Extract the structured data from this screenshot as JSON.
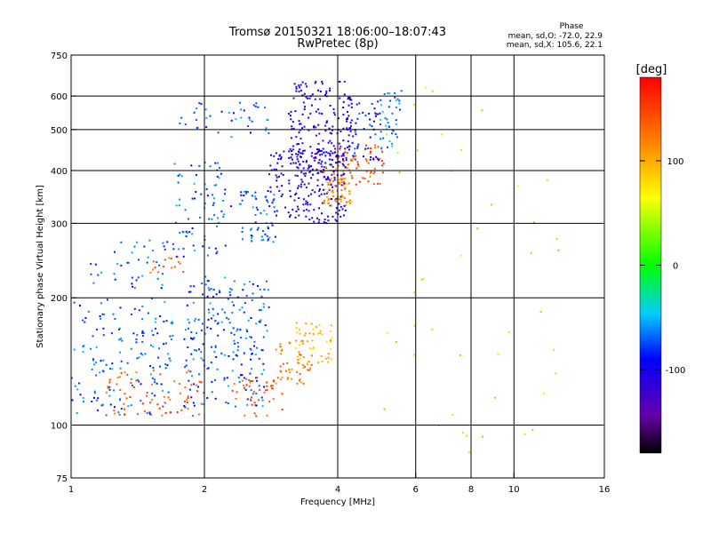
{
  "chart_data": {
    "type": "scatter",
    "title": "Tromsø 20150321 18:06:00–18:07:43",
    "subtitle": "RwPretec (8p)",
    "xlabel": "Frequency [MHz]",
    "ylabel": "Stationary phase Virtual Height [km]",
    "x_scale": "log",
    "y_scale": "log",
    "xlim": [
      1,
      16
    ],
    "ylim": [
      75,
      750
    ],
    "x_ticks": [
      1,
      2,
      4,
      6,
      8,
      10,
      16
    ],
    "x_tick_labels": [
      "1",
      "2",
      "4",
      "6",
      "8",
      "10",
      "16"
    ],
    "y_ticks": [
      75,
      100,
      200,
      300,
      400,
      500,
      600,
      750
    ],
    "y_tick_labels": [
      "75",
      "100",
      "200",
      "300",
      "400",
      "500",
      "600",
      "750"
    ],
    "grid": true,
    "stats": {
      "heading": "Phase",
      "line_o": "mean, sd,O: -72.0, 22.9",
      "line_x": "mean, sd,X: 105.6, 22.1"
    },
    "colorbar": {
      "label": "[deg]",
      "colormap": "rainbow",
      "range": [
        -180,
        180
      ],
      "ticks": [
        100,
        0,
        -100
      ],
      "tick_labels": [
        "100",
        "0",
        "-100"
      ]
    },
    "clusters": [
      {
        "f_range": [
          1.0,
          1.7
        ],
        "h_range": [
          105,
          200
        ],
        "phase": -72,
        "n": 160
      },
      {
        "f_range": [
          1.8,
          2.8
        ],
        "h_range": [
          110,
          225
        ],
        "phase": -72,
        "n": 220
      },
      {
        "f_range": [
          1.2,
          2.0
        ],
        "h_range": [
          105,
          135
        ],
        "phase": 138,
        "n": 70
      },
      {
        "f_range": [
          2.3,
          3.0
        ],
        "h_range": [
          105,
          130
        ],
        "phase": 140,
        "n": 40
      },
      {
        "f_range": [
          2.9,
          3.5
        ],
        "h_range": [
          125,
          160
        ],
        "phase": 125,
        "n": 50
      },
      {
        "f_range": [
          3.2,
          3.9
        ],
        "h_range": [
          140,
          175
        ],
        "phase": 95,
        "n": 50
      },
      {
        "f_range": [
          1.1,
          1.7
        ],
        "h_range": [
          210,
          275
        ],
        "phase": -72,
        "n": 40
      },
      {
        "f_range": [
          1.5,
          1.8
        ],
        "h_range": [
          225,
          250
        ],
        "phase": 138,
        "n": 15
      },
      {
        "f_range": [
          1.7,
          2.3
        ],
        "h_range": [
          250,
          420
        ],
        "phase": -72,
        "n": 80
      },
      {
        "f_range": [
          2.4,
          2.9
        ],
        "h_range": [
          270,
          360
        ],
        "phase": -72,
        "n": 60
      },
      {
        "f_range": [
          1.7,
          2.8
        ],
        "h_range": [
          480,
          580
        ],
        "phase": -72,
        "n": 40
      },
      {
        "f_range": [
          2.8,
          4.2
        ],
        "h_range": [
          300,
          450
        ],
        "phase": -105,
        "n": 200
      },
      {
        "f_range": [
          3.1,
          4.3
        ],
        "h_range": [
          380,
          650
        ],
        "phase": -110,
        "n": 200
      },
      {
        "f_range": [
          3.7,
          4.3
        ],
        "h_range": [
          330,
          410
        ],
        "phase": 110,
        "n": 70
      },
      {
        "f_range": [
          4.0,
          5.1
        ],
        "h_range": [
          370,
          460
        ],
        "phase": 140,
        "n": 60
      },
      {
        "f_range": [
          4.2,
          5.0
        ],
        "h_range": [
          420,
          600
        ],
        "phase": -90,
        "n": 60
      },
      {
        "f_range": [
          5.0,
          5.6
        ],
        "h_range": [
          450,
          620
        ],
        "phase": -60,
        "n": 40
      },
      {
        "f_range": [
          5.0,
          13.0
        ],
        "h_range": [
          80,
          650
        ],
        "phase": 40,
        "n": 45
      }
    ]
  }
}
